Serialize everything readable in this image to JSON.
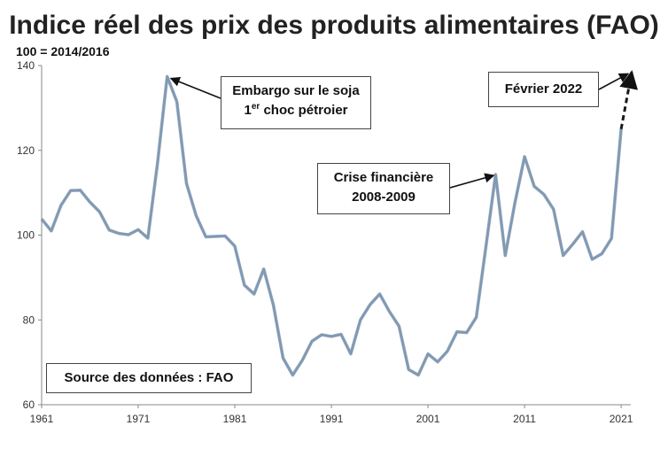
{
  "chart_data": {
    "type": "line",
    "title": "Indice réel des prix des produits alimentaires (FAO)",
    "ylabel": "100 = 2014/2016",
    "xlim": [
      1961,
      2022
    ],
    "ylim": [
      60,
      140
    ],
    "x_ticks": [
      1961,
      1971,
      1981,
      1991,
      2001,
      2011,
      2021
    ],
    "y_ticks": [
      60,
      80,
      100,
      120,
      140
    ],
    "grid": "none",
    "series": [
      {
        "x": [
          1961,
          1962,
          1963,
          1964,
          1965,
          1966,
          1967,
          1968,
          1969,
          1970,
          1971,
          1972,
          1973,
          1974,
          1975,
          1976,
          1977,
          1978,
          1979,
          1980,
          1981,
          1982,
          1983,
          1984,
          1985,
          1986,
          1987,
          1988,
          1989,
          1990,
          1991,
          1992,
          1993,
          1994,
          1995,
          1996,
          1997,
          1998,
          1999,
          2000,
          2001,
          2002,
          2003,
          2004,
          2005,
          2006,
          2007,
          2008,
          2009,
          2010,
          2011,
          2012,
          2013,
          2014,
          2015,
          2016,
          2017,
          2018,
          2019,
          2020,
          2021
        ],
        "y": [
          103.8,
          101,
          107,
          110.5,
          110.6,
          107.8,
          105.5,
          101.2,
          100.4,
          100.1,
          101.3,
          99.3,
          117,
          137.4,
          131.5,
          112.2,
          104.6,
          99.6,
          99.7,
          99.8,
          97.4,
          88.2,
          86.1,
          92,
          83.5,
          71,
          67,
          70.5,
          75,
          76.5,
          76.1,
          76.6,
          72,
          80,
          83.6,
          86.1,
          82,
          78.5,
          68.3,
          67,
          72,
          70.1,
          72.6,
          77.2,
          77,
          80.6,
          97.3,
          114.3,
          95.2,
          107.6,
          118.5,
          111.5,
          109.6,
          106.1,
          95.2,
          97.9,
          100.8,
          94.3,
          95.6,
          99.2,
          125
        ]
      }
    ],
    "extension": {
      "x": [
        2021,
        2022.1
      ],
      "y": [
        125,
        138.5
      ],
      "style": "dashed"
    },
    "annotations": [
      {
        "lines": [
          "Embargo sur le soja",
          "choc pétroier"
        ],
        "line2_prefix": "1",
        "line2_sup": "er",
        "target": [
          1974,
          137.4
        ]
      },
      {
        "lines": [
          "Crise financière",
          "2008-2009"
        ],
        "target": [
          2008,
          114.3
        ]
      },
      {
        "lines": [
          "Février 2022"
        ],
        "target": [
          2022.1,
          138.5
        ]
      },
      {
        "lines": [
          "Source des données : FAO"
        ]
      }
    ],
    "colors": {
      "line": "#7f99b5",
      "line_dark": "#4a6784",
      "extension": "#1a1a1a"
    }
  }
}
